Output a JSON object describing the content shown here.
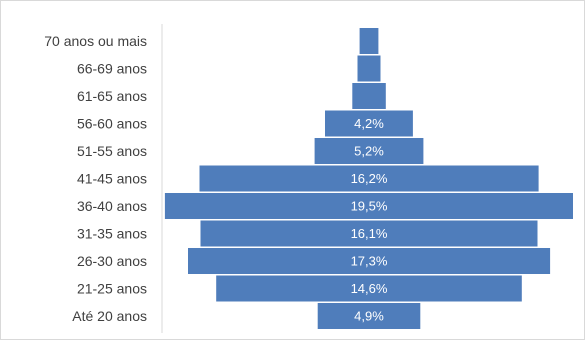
{
  "chart_data": {
    "type": "bar",
    "orientation": "horizontal",
    "layout": "centered-pyramid",
    "categories": [
      "70 anos ou mais",
      "66-69 anos",
      "61-65 anos",
      "56-60 anos",
      "51-55 anos",
      "41-45 anos",
      "36-40 anos",
      "31-35 anos",
      "26-30 anos",
      "21-25 anos",
      "Até 20 anos"
    ],
    "values": [
      0.9,
      1.1,
      1.6,
      4.2,
      5.2,
      16.2,
      19.5,
      16.1,
      17.3,
      14.6,
      4.9
    ],
    "value_labels": [
      "",
      "",
      "",
      "4,2%",
      "5,2%",
      "16,2%",
      "19,5%",
      "16,1%",
      "17,3%",
      "14,6%",
      "4,9%"
    ],
    "value_unit": "%",
    "bar_color": "#4f7dbb",
    "label_color": "#ffffff",
    "text_color": "#404040",
    "axis_color": "#d9d9d9",
    "grid": false,
    "legend": "none",
    "title": "",
    "xlabel": "",
    "ylabel": ""
  }
}
